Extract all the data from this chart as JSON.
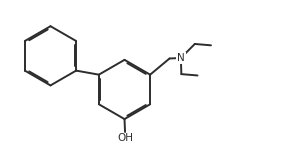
{
  "bg_color": "#ffffff",
  "line_color": "#2d2d2d",
  "line_width": 1.4,
  "dbo": 0.055,
  "fig_width": 2.84,
  "fig_height": 1.52,
  "dpi": 100,
  "xlim": [
    0.0,
    10.5
  ],
  "ylim": [
    0.5,
    5.8
  ]
}
